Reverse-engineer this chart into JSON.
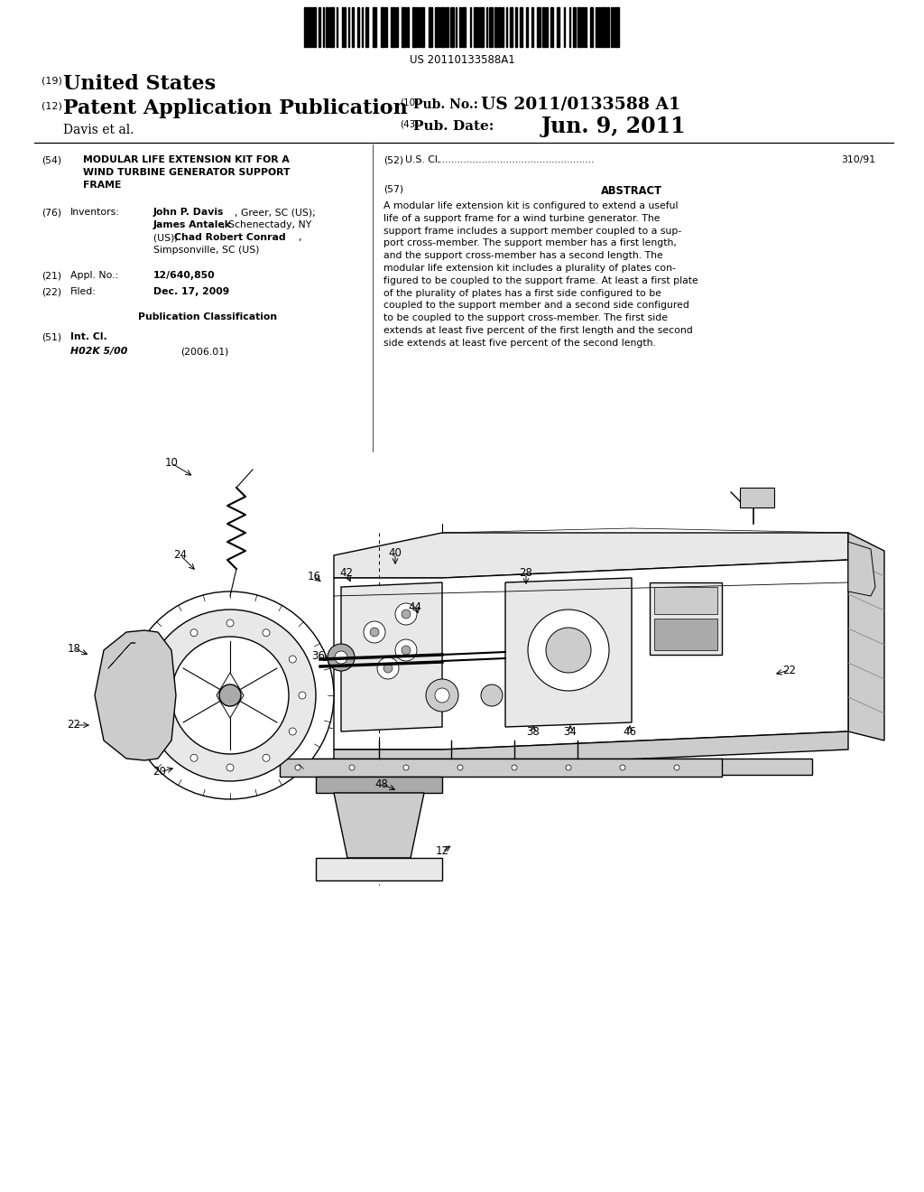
{
  "background_color": "#ffffff",
  "page_width": 10.24,
  "page_height": 13.2,
  "barcode_text": "US 20110133588A1",
  "patent_number_tag": "(19)",
  "patent_country": "United States",
  "pub_tag": "(12)",
  "pub_title": "Patent Application Publication",
  "pub_num_tag": "(10)",
  "pub_num_label": "Pub. No.:",
  "pub_num_value": "US 2011/0133588 A1",
  "inventor_tag": "Davis et al.",
  "date_tag": "(43)",
  "date_label": "Pub. Date:",
  "date_value": "Jun. 9, 2011",
  "field54_tag": "(54)",
  "field54_line1": "MODULAR LIFE EXTENSION KIT FOR A",
  "field54_line2": "WIND TURBINE GENERATOR SUPPORT",
  "field54_line3": "FRAME",
  "field52_tag": "(52)",
  "field52_label": "U.S. Cl.",
  "field52_dots": "....................................................",
  "field52_value": "310/91",
  "field76_tag": "(76)",
  "field76_label": "Inventors:",
  "field57_tag": "(57)",
  "field57_title": "ABSTRACT",
  "field57_text": "A modular life extension kit is configured to extend a useful\nlife of a support frame for a wind turbine generator. The\nsupport frame includes a support member coupled to a sup-\nport cross-member. The support member has a first length,\nand the support cross-member has a second length. The\nmodular life extension kit includes a plurality of plates con-\nfigured to be coupled to the support frame. At least a first plate\nof the plurality of plates has a first side configured to be\ncoupled to the support member and a second side configured\nto be coupled to the support cross-member. The first side\nextends at least five percent of the first length and the second\nside extends at least five percent of the second length.",
  "field21_tag": "(21)",
  "field21_label": "Appl. No.:",
  "field21_value": "12/640,850",
  "field22_tag": "(22)",
  "field22_label": "Filed:",
  "field22_value": "Dec. 17, 2009",
  "pub_class_title": "Publication Classification",
  "field51_tag": "(51)",
  "field51_label": "Int. Cl.",
  "field51_class": "H02K 5/00",
  "field51_year": "(2006.01)",
  "inv1_bold": "John P. Davis",
  "inv1_normal": ", Greer, SC (US);",
  "inv2_bold": "James Antalek",
  "inv2_normal": ", Schenectady, NY",
  "inv3_normal": "(US); ",
  "inv3_bold": "Chad Robert Conrad",
  "inv3_end": ",",
  "inv4_normal": "Simpsonville, SC (US)"
}
